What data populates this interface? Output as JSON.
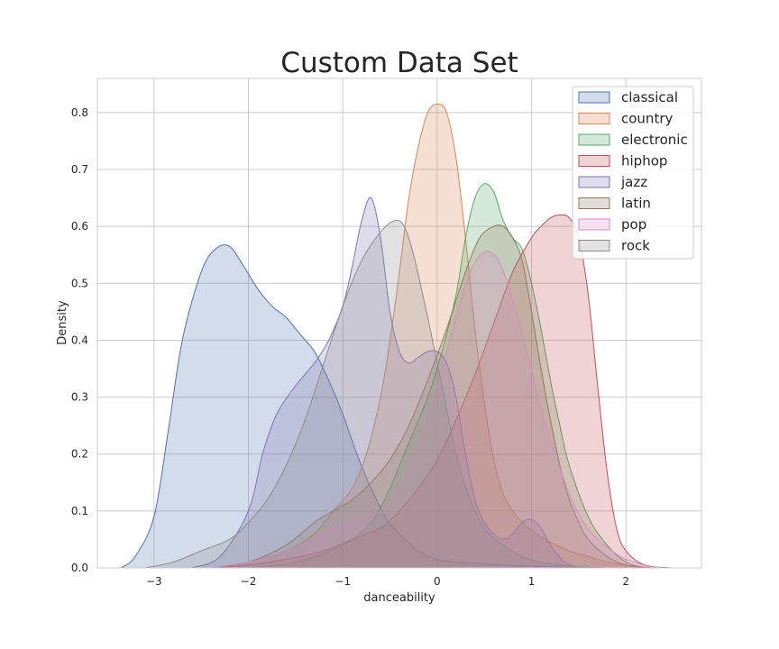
{
  "chart_data": {
    "type": "area",
    "title": "Custom Data Set",
    "xlabel": "danceability",
    "ylabel": "Density",
    "xlim": [
      -3.6,
      2.8
    ],
    "ylim": [
      0,
      0.86
    ],
    "xticks": [
      -3,
      -2,
      -1,
      0,
      1,
      2
    ],
    "xtick_labels": [
      "−3",
      "−2",
      "−1",
      "0",
      "1",
      "2"
    ],
    "yticks": [
      0.0,
      0.1,
      0.2,
      0.3,
      0.4,
      0.5,
      0.6,
      0.7,
      0.8
    ],
    "ytick_labels": [
      "0.0",
      "0.1",
      "0.2",
      "0.3",
      "0.4",
      "0.5",
      "0.6",
      "0.7",
      "0.8"
    ],
    "grid": true,
    "legend_position": "top-right",
    "series": [
      {
        "name": "classical",
        "color": "#4C72B0",
        "x": [
          -3.35,
          -3.2,
          -3.0,
          -2.85,
          -2.7,
          -2.5,
          -2.35,
          -2.2,
          -2.05,
          -1.9,
          -1.75,
          -1.6,
          -1.45,
          -1.3,
          -1.15,
          -1.0,
          -0.85,
          -0.7,
          -0.55,
          -0.4,
          -0.2,
          0.0,
          0.2,
          0.4,
          0.6,
          0.8,
          1.0,
          1.2,
          1.4,
          1.6
        ],
        "y": [
          0.0,
          0.02,
          0.09,
          0.24,
          0.4,
          0.52,
          0.56,
          0.565,
          0.53,
          0.49,
          0.46,
          0.44,
          0.41,
          0.38,
          0.33,
          0.27,
          0.2,
          0.14,
          0.09,
          0.06,
          0.03,
          0.015,
          0.01,
          0.008,
          0.006,
          0.004,
          0.003,
          0.002,
          0.001,
          0.0
        ]
      },
      {
        "name": "country",
        "color": "#DD8452",
        "x": [
          -2.4,
          -2.0,
          -1.6,
          -1.3,
          -1.1,
          -0.9,
          -0.75,
          -0.6,
          -0.5,
          -0.4,
          -0.3,
          -0.2,
          -0.1,
          0.0,
          0.1,
          0.2,
          0.3,
          0.4,
          0.5,
          0.6,
          0.7,
          0.8,
          0.9,
          1.0,
          1.2,
          1.4,
          1.6,
          1.8,
          2.0,
          2.3
        ],
        "y": [
          0.0,
          0.01,
          0.03,
          0.06,
          0.1,
          0.14,
          0.2,
          0.3,
          0.4,
          0.52,
          0.65,
          0.74,
          0.8,
          0.815,
          0.8,
          0.72,
          0.58,
          0.42,
          0.29,
          0.19,
          0.13,
          0.1,
          0.08,
          0.065,
          0.045,
          0.03,
          0.02,
          0.01,
          0.005,
          0.0
        ]
      },
      {
        "name": "electronic",
        "color": "#55A868",
        "x": [
          -2.0,
          -1.5,
          -1.0,
          -0.7,
          -0.5,
          -0.3,
          -0.1,
          0.05,
          0.2,
          0.3,
          0.4,
          0.5,
          0.6,
          0.7,
          0.8,
          0.9,
          1.0,
          1.1,
          1.2,
          1.3,
          1.4,
          1.6,
          1.8,
          2.0,
          2.2
        ],
        "y": [
          0.0,
          0.01,
          0.04,
          0.08,
          0.14,
          0.22,
          0.3,
          0.38,
          0.48,
          0.58,
          0.65,
          0.675,
          0.66,
          0.61,
          0.58,
          0.56,
          0.5,
          0.42,
          0.33,
          0.25,
          0.18,
          0.09,
          0.04,
          0.01,
          0.0
        ]
      },
      {
        "name": "hiphop",
        "color": "#C44E52",
        "x": [
          -2.4,
          -2.0,
          -1.6,
          -1.2,
          -0.9,
          -0.6,
          -0.4,
          -0.2,
          0.0,
          0.2,
          0.4,
          0.6,
          0.8,
          1.0,
          1.1,
          1.2,
          1.3,
          1.4,
          1.5,
          1.6,
          1.7,
          1.8,
          1.9,
          2.0,
          2.2,
          2.5
        ],
        "y": [
          0.0,
          0.005,
          0.015,
          0.03,
          0.05,
          0.07,
          0.1,
          0.14,
          0.19,
          0.26,
          0.34,
          0.43,
          0.52,
          0.58,
          0.6,
          0.615,
          0.62,
          0.615,
          0.58,
          0.48,
          0.32,
          0.17,
          0.07,
          0.03,
          0.005,
          0.0
        ]
      },
      {
        "name": "jazz",
        "color": "#8172B3",
        "x": [
          -2.6,
          -2.3,
          -2.0,
          -1.85,
          -1.7,
          -1.5,
          -1.3,
          -1.15,
          -1.0,
          -0.9,
          -0.8,
          -0.7,
          -0.6,
          -0.5,
          -0.4,
          -0.3,
          -0.2,
          -0.1,
          0.0,
          0.1,
          0.2,
          0.3,
          0.4,
          0.5,
          0.6,
          0.7,
          0.8,
          0.9,
          1.0,
          1.1,
          1.2,
          1.35,
          1.5
        ],
        "y": [
          0.0,
          0.02,
          0.1,
          0.2,
          0.27,
          0.32,
          0.36,
          0.4,
          0.46,
          0.53,
          0.61,
          0.65,
          0.58,
          0.45,
          0.38,
          0.36,
          0.37,
          0.38,
          0.38,
          0.36,
          0.3,
          0.2,
          0.12,
          0.08,
          0.06,
          0.05,
          0.06,
          0.08,
          0.085,
          0.07,
          0.04,
          0.01,
          0.0
        ]
      },
      {
        "name": "latin",
        "color": "#937860",
        "x": [
          -2.4,
          -2.0,
          -1.6,
          -1.3,
          -1.1,
          -0.9,
          -0.7,
          -0.5,
          -0.3,
          -0.1,
          0.1,
          0.3,
          0.45,
          0.6,
          0.7,
          0.8,
          0.9,
          1.0,
          1.1,
          1.2,
          1.3,
          1.4,
          1.5,
          1.6,
          1.8,
          2.0,
          2.2
        ],
        "y": [
          0.0,
          0.01,
          0.04,
          0.08,
          0.1,
          0.12,
          0.15,
          0.19,
          0.25,
          0.33,
          0.42,
          0.52,
          0.58,
          0.6,
          0.6,
          0.58,
          0.54,
          0.45,
          0.35,
          0.26,
          0.18,
          0.12,
          0.08,
          0.05,
          0.02,
          0.005,
          0.0
        ]
      },
      {
        "name": "pop",
        "color": "#DA8BC3",
        "x": [
          -2.4,
          -2.0,
          -1.6,
          -1.2,
          -0.9,
          -0.6,
          -0.4,
          -0.2,
          0.0,
          0.2,
          0.35,
          0.5,
          0.65,
          0.8,
          0.95,
          1.1,
          1.25,
          1.4,
          1.55,
          1.7,
          1.85,
          2.0,
          2.2,
          2.4
        ],
        "y": [
          0.0,
          0.01,
          0.03,
          0.06,
          0.08,
          0.1,
          0.14,
          0.22,
          0.32,
          0.44,
          0.52,
          0.555,
          0.54,
          0.47,
          0.38,
          0.28,
          0.2,
          0.13,
          0.08,
          0.05,
          0.03,
          0.015,
          0.005,
          0.0
        ]
      },
      {
        "name": "rock",
        "color": "#8C8C8C",
        "x": [
          -3.1,
          -2.8,
          -2.5,
          -2.2,
          -2.0,
          -1.8,
          -1.6,
          -1.4,
          -1.2,
          -1.0,
          -0.8,
          -0.6,
          -0.45,
          -0.35,
          -0.25,
          -0.1,
          0.05,
          0.2,
          0.35,
          0.5,
          0.7,
          0.9,
          1.1,
          1.3,
          1.5,
          1.8
        ],
        "y": [
          0.0,
          0.01,
          0.03,
          0.05,
          0.08,
          0.12,
          0.18,
          0.26,
          0.36,
          0.46,
          0.54,
          0.59,
          0.61,
          0.6,
          0.55,
          0.44,
          0.32,
          0.2,
          0.12,
          0.07,
          0.04,
          0.02,
          0.01,
          0.005,
          0.002,
          0.0
        ]
      }
    ]
  }
}
